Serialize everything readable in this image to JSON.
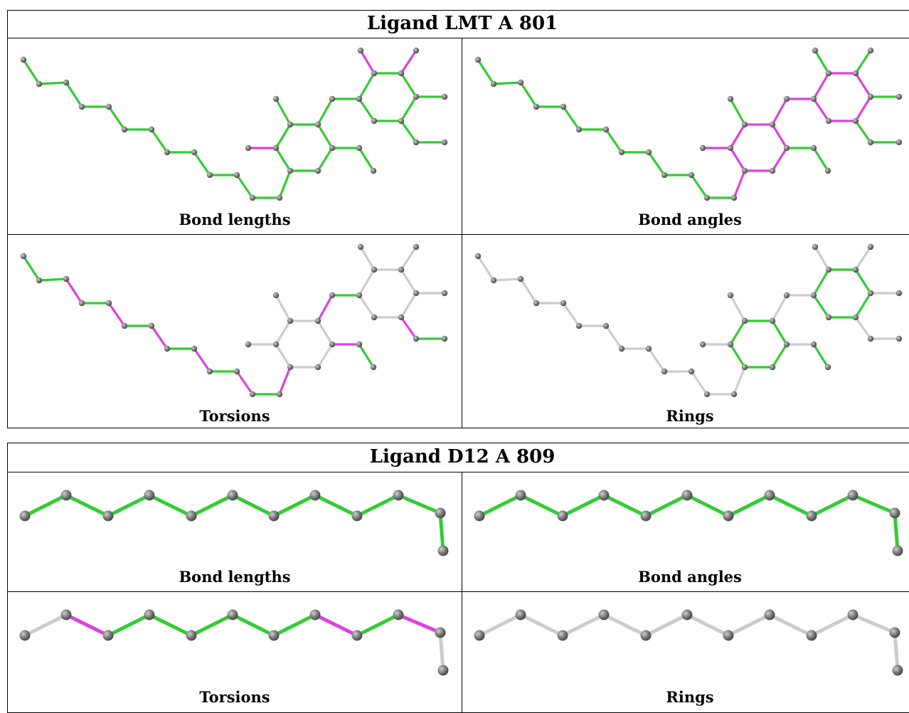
{
  "colors": {
    "checked_ok": "#33cc33",
    "flagged": "#e040e0",
    "not_checked": "#cccccc",
    "atom": "#7f7f7f"
  },
  "ligands": [
    {
      "title": "Ligand LMT A 801",
      "panels": [
        {
          "label": "Bond lengths"
        },
        {
          "label": "Bond angles"
        },
        {
          "label": "Torsions"
        },
        {
          "label": "Rings"
        }
      ]
    },
    {
      "title": "Ligand D12 A 809",
      "panels": [
        {
          "label": "Bond lengths"
        },
        {
          "label": "Bond angles"
        },
        {
          "label": "Torsions"
        },
        {
          "label": "Rings"
        }
      ]
    }
  ]
}
